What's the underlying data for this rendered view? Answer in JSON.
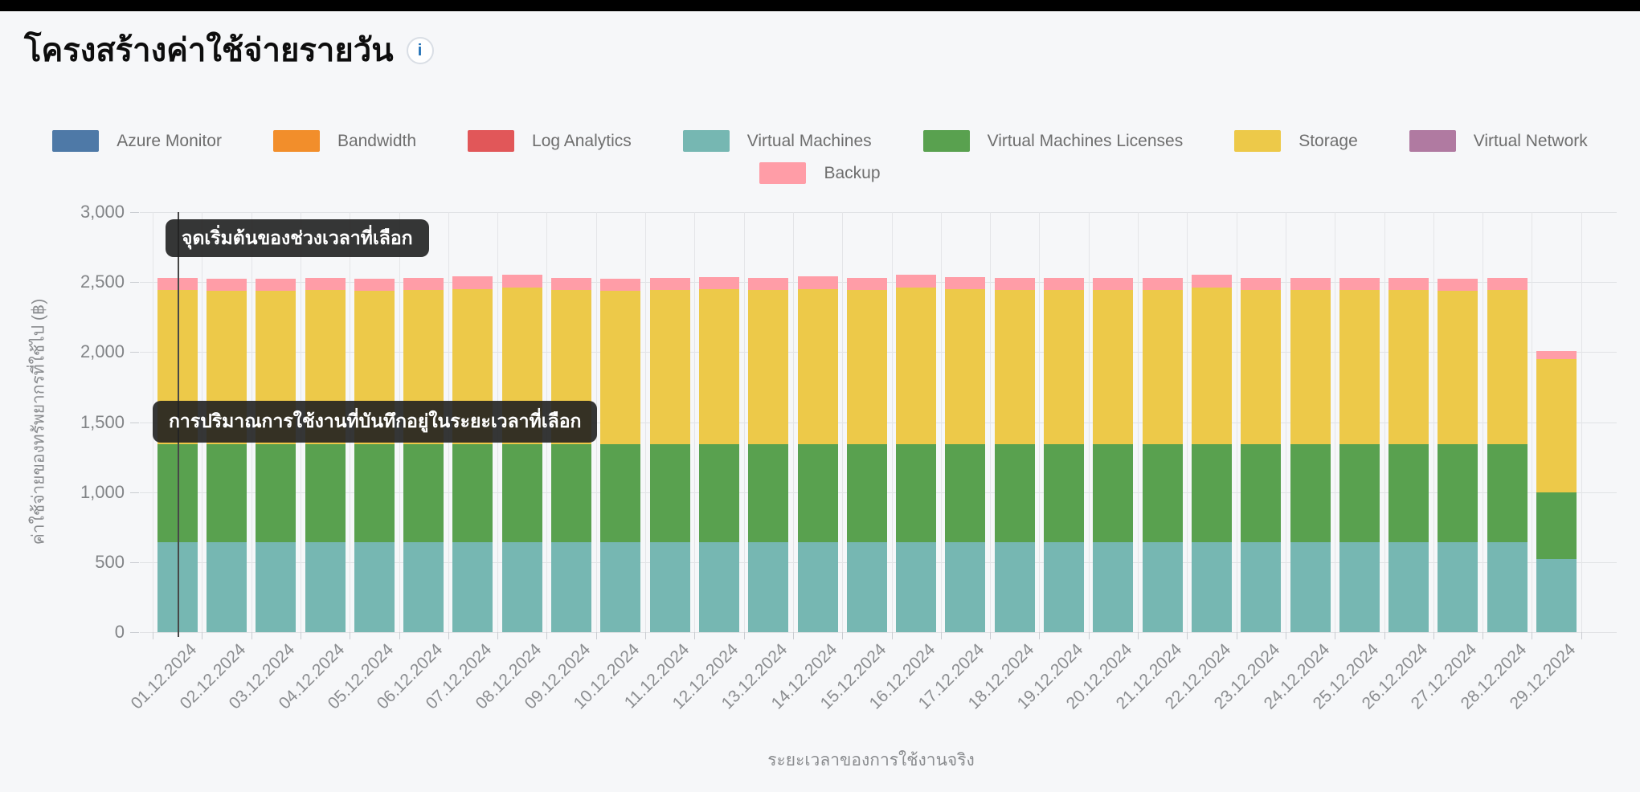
{
  "page": {
    "title": "โครงสร้างค่าใช้จ่ายรายวัน",
    "info_icon": "i"
  },
  "annotations": {
    "start_marker": "จุดเริ่มต้นของช่วงเวลาที่เลือก",
    "usage_recorded": "การปริมาณการใช้งานที่บันทึกอยู่ในระยะเวลาที่เลือก"
  },
  "chart_data": {
    "type": "bar",
    "stacked": true,
    "title": "โครงสร้างค่าใช้จ่ายรายวัน",
    "xlabel": "ระยะเวลาของการใช้งานจริง",
    "ylabel": "ค่าใช้จ่ายของทรัพยากรที่ใช้ไป  (฿)",
    "ylim": [
      0,
      3000
    ],
    "ytick_step": 500,
    "ytick_labels": [
      "0",
      "500",
      "1,000",
      "1,500",
      "2,000",
      "2,500",
      "3,000"
    ],
    "grid": true,
    "legend_position": "top-center",
    "marker_x_category": "01.12.2024",
    "categories": [
      "01.12.2024",
      "02.12.2024",
      "03.12.2024",
      "04.12.2024",
      "05.12.2024",
      "06.12.2024",
      "07.12.2024",
      "08.12.2024",
      "09.12.2024",
      "10.12.2024",
      "11.12.2024",
      "12.12.2024",
      "13.12.2024",
      "14.12.2024",
      "15.12.2024",
      "16.12.2024",
      "17.12.2024",
      "18.12.2024",
      "19.12.2024",
      "20.12.2024",
      "21.12.2024",
      "22.12.2024",
      "23.12.2024",
      "24.12.2024",
      "25.12.2024",
      "26.12.2024",
      "27.12.2024",
      "28.12.2024",
      "29.12.2024"
    ],
    "series": [
      {
        "name": "Azure Monitor",
        "color": "#4e79a7",
        "values": [
          0,
          0,
          0,
          0,
          0,
          0,
          0,
          0,
          0,
          0,
          0,
          0,
          0,
          0,
          0,
          0,
          0,
          0,
          0,
          0,
          0,
          0,
          0,
          0,
          0,
          0,
          0,
          0,
          0
        ]
      },
      {
        "name": "Bandwidth",
        "color": "#f28e2b",
        "values": [
          0,
          0,
          0,
          0,
          0,
          0,
          0,
          0,
          0,
          0,
          0,
          0,
          0,
          0,
          0,
          0,
          0,
          0,
          0,
          0,
          0,
          0,
          0,
          0,
          0,
          0,
          0,
          0,
          0
        ]
      },
      {
        "name": "Log Analytics",
        "color": "#e15759",
        "values": [
          0,
          0,
          0,
          0,
          0,
          0,
          0,
          0,
          0,
          0,
          0,
          0,
          0,
          0,
          0,
          0,
          0,
          0,
          0,
          0,
          0,
          0,
          0,
          0,
          0,
          0,
          0,
          0,
          0
        ]
      },
      {
        "name": "Virtual Machines",
        "color": "#76b7b2",
        "values": [
          640,
          640,
          640,
          640,
          640,
          640,
          640,
          640,
          640,
          640,
          640,
          640,
          640,
          640,
          640,
          640,
          640,
          640,
          640,
          640,
          640,
          640,
          640,
          640,
          640,
          640,
          640,
          640,
          520
        ]
      },
      {
        "name": "Virtual Machines Licenses",
        "color": "#59a14f",
        "values": [
          700,
          700,
          700,
          700,
          700,
          700,
          700,
          700,
          700,
          700,
          700,
          700,
          700,
          700,
          700,
          700,
          700,
          700,
          700,
          700,
          700,
          700,
          700,
          700,
          700,
          700,
          700,
          700,
          480
        ]
      },
      {
        "name": "Storage",
        "color": "#edc949",
        "values": [
          1105,
          1100,
          1100,
          1105,
          1100,
          1105,
          1110,
          1120,
          1105,
          1100,
          1105,
          1110,
          1105,
          1110,
          1105,
          1120,
          1110,
          1105,
          1105,
          1105,
          1105,
          1120,
          1105,
          1105,
          1105,
          1105,
          1100,
          1105,
          950
        ]
      },
      {
        "name": "Virtual Network",
        "color": "#b07aa1",
        "values": [
          0,
          0,
          0,
          0,
          0,
          0,
          0,
          0,
          0,
          0,
          0,
          0,
          0,
          0,
          0,
          0,
          0,
          0,
          0,
          0,
          0,
          0,
          0,
          0,
          0,
          0,
          0,
          0,
          0
        ]
      },
      {
        "name": "Backup",
        "color": "#ff9da7",
        "values": [
          85,
          85,
          85,
          85,
          85,
          85,
          90,
          90,
          85,
          85,
          85,
          85,
          85,
          90,
          85,
          90,
          85,
          85,
          85,
          85,
          85,
          90,
          85,
          85,
          85,
          85,
          85,
          85,
          60
        ]
      }
    ]
  }
}
